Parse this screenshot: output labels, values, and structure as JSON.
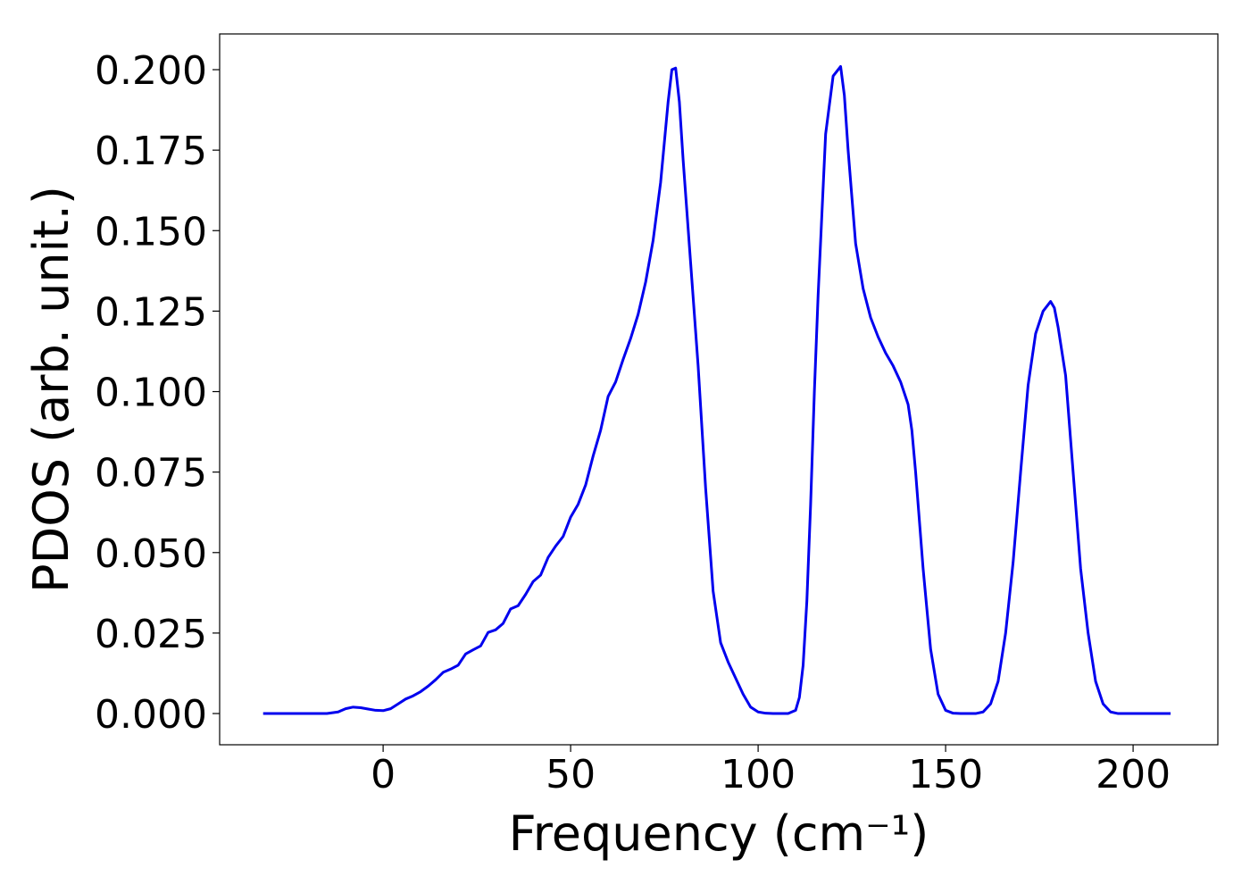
{
  "chart_data": {
    "type": "line",
    "xlabel": "Frequency (cm⁻¹)",
    "ylabel": "PDOS (arb. unit.)",
    "xlim": [
      -43.6,
      222.6
    ],
    "ylim": [
      -0.0097,
      0.2111
    ],
    "xticks": [
      0,
      50,
      100,
      150,
      200
    ],
    "yticks": [
      {
        "value": 0,
        "label": "0.000"
      },
      {
        "value": 0.025,
        "label": "0.025"
      },
      {
        "value": 0.05,
        "label": "0.050"
      },
      {
        "value": 0.075,
        "label": "0.075"
      },
      {
        "value": 0.1,
        "label": "0.100"
      },
      {
        "value": 0.125,
        "label": "0.125"
      },
      {
        "value": 0.15,
        "label": "0.150"
      },
      {
        "value": 0.175,
        "label": "0.175"
      },
      {
        "value": 0.2,
        "label": "0.200"
      }
    ],
    "grid": false,
    "series": [
      {
        "color": "#0000ee",
        "x": [
          -32,
          -20,
          -15,
          -12,
          -10,
          -8,
          -6,
          -4,
          -2,
          0,
          2,
          4,
          6,
          8,
          10,
          12,
          14,
          16,
          18,
          20,
          22,
          24,
          26,
          28,
          30,
          32,
          34,
          36,
          38,
          40,
          42,
          44,
          46,
          48,
          50,
          52,
          54,
          56,
          58,
          60,
          62,
          64,
          66,
          68,
          70,
          72,
          74,
          76,
          77,
          78,
          79,
          80,
          82,
          84,
          86,
          88,
          90,
          92,
          94,
          96,
          98,
          100,
          102,
          104,
          108,
          110,
          111,
          112,
          113,
          114,
          115,
          116,
          118,
          120,
          122,
          123,
          124,
          126,
          128,
          130,
          132,
          134,
          136,
          138,
          140,
          141,
          142,
          144,
          146,
          148,
          150,
          152,
          154,
          158,
          160,
          162,
          164,
          166,
          168,
          170,
          172,
          174,
          176,
          178,
          179,
          180,
          182,
          184,
          186,
          188,
          190,
          192,
          194,
          196,
          210
        ],
        "values": [
          0,
          0,
          0,
          0.0005,
          0.0015,
          0.002,
          0.0018,
          0.0014,
          0.001,
          0.0009,
          0.0015,
          0.003,
          0.0045,
          0.0055,
          0.0068,
          0.0085,
          0.0105,
          0.0128,
          0.0138,
          0.015,
          0.0185,
          0.0198,
          0.021,
          0.0252,
          0.026,
          0.028,
          0.0325,
          0.0335,
          0.037,
          0.041,
          0.043,
          0.0485,
          0.052,
          0.055,
          0.061,
          0.065,
          0.071,
          0.08,
          0.088,
          0.0985,
          0.103,
          0.11,
          0.1165,
          0.124,
          0.134,
          0.147,
          0.165,
          0.19,
          0.2,
          0.2005,
          0.19,
          0.172,
          0.14,
          0.108,
          0.07,
          0.038,
          0.022,
          0.016,
          0.011,
          0.006,
          0.002,
          0.0005,
          0.0001,
          0,
          0,
          0.001,
          0.005,
          0.015,
          0.035,
          0.065,
          0.1,
          0.13,
          0.18,
          0.198,
          0.201,
          0.192,
          0.175,
          0.146,
          0.132,
          0.123,
          0.117,
          0.112,
          0.108,
          0.103,
          0.096,
          0.088,
          0.075,
          0.045,
          0.02,
          0.006,
          0.001,
          0.0001,
          0,
          0,
          0.0005,
          0.003,
          0.01,
          0.025,
          0.047,
          0.075,
          0.102,
          0.118,
          0.125,
          0.128,
          0.126,
          0.12,
          0.105,
          0.075,
          0.045,
          0.025,
          0.01,
          0.003,
          0.0005,
          0,
          0
        ]
      }
    ]
  }
}
